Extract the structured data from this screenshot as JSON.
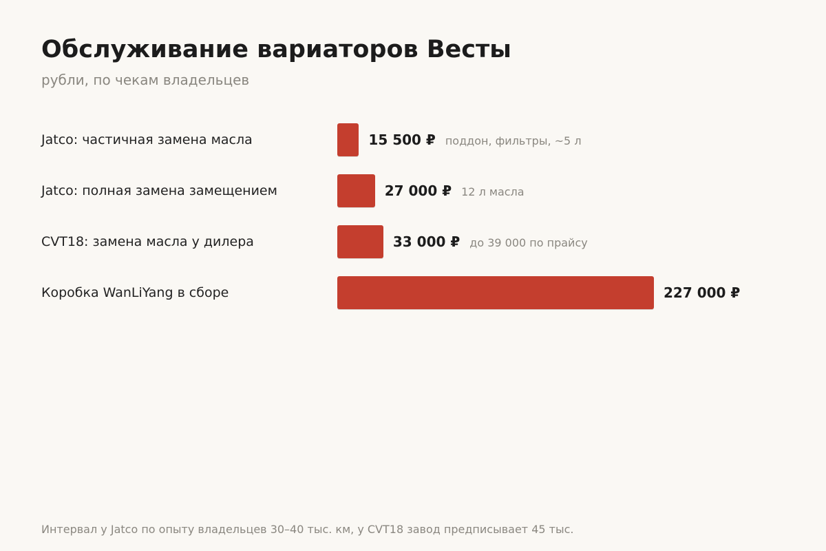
{
  "page": {
    "title": "Обслуживание вариаторов Весты",
    "subtitle": "рубли, по чекам владельцев",
    "footnote": "Интервал у Jatco по опыту владельцев 30–40 тыс. км, у CVT18 завод предписывает 45 тыс."
  },
  "chart_data": {
    "type": "bar",
    "orientation": "horizontal",
    "title": "Обслуживание вариаторов Весты",
    "subtitle": "рубли, по чекам владельцев",
    "xlim": [
      0,
      227000
    ],
    "grid": false,
    "legend": "none",
    "bar_color": "#c43e2e",
    "categories": [
      "Jatco: частичная замена масла",
      "Jatco: полная замена замещением",
      "CVT18: замена масла у дилера",
      "Коробка WanLiYang в сборе"
    ],
    "values": [
      15500,
      27000,
      33000,
      227000
    ],
    "value_labels": [
      "15 500 ₽",
      "27 000 ₽",
      "33 000 ₽",
      "227 000 ₽"
    ],
    "notes": [
      "поддон, фильтры, ~5 л",
      "12 л масла",
      "до 39 000 по прайсу",
      ""
    ]
  }
}
